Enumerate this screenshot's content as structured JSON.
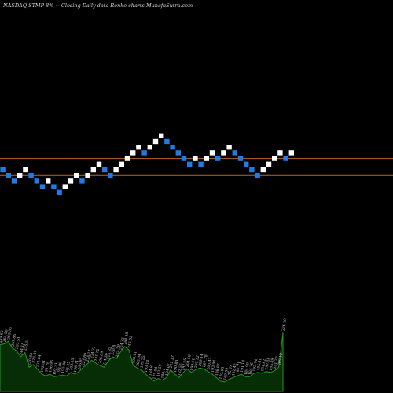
{
  "header": {
    "title": "NASDAQ STMP 8% ~ Closing Daily data Renko charts MunafaSutra.com"
  },
  "colors": {
    "background": "#000000",
    "up_brick": "#ffffff",
    "down_brick": "#1e7ce8",
    "reference_line": "#b8652a",
    "volume_fill": "#062d06",
    "volume_stroke": "#1c9a1c"
  },
  "chart_data": [
    {
      "type": "renko",
      "reference_lines": [
        2,
        -1
      ],
      "bricks": [
        {
          "level": 0,
          "dir": "down"
        },
        {
          "level": -1,
          "dir": "down"
        },
        {
          "level": -2,
          "dir": "down"
        },
        {
          "level": -1,
          "dir": "up"
        },
        {
          "level": 0,
          "dir": "up"
        },
        {
          "level": -1,
          "dir": "down"
        },
        {
          "level": -2,
          "dir": "down"
        },
        {
          "level": -3,
          "dir": "down"
        },
        {
          "level": -2,
          "dir": "up"
        },
        {
          "level": -3,
          "dir": "down"
        },
        {
          "level": -4,
          "dir": "down"
        },
        {
          "level": -3,
          "dir": "up"
        },
        {
          "level": -2,
          "dir": "up"
        },
        {
          "level": -1,
          "dir": "up"
        },
        {
          "level": -2,
          "dir": "down"
        },
        {
          "level": -1,
          "dir": "up"
        },
        {
          "level": 0,
          "dir": "up"
        },
        {
          "level": 1,
          "dir": "up"
        },
        {
          "level": 0,
          "dir": "down"
        },
        {
          "level": -1,
          "dir": "down"
        },
        {
          "level": 0,
          "dir": "up"
        },
        {
          "level": 1,
          "dir": "up"
        },
        {
          "level": 2,
          "dir": "up"
        },
        {
          "level": 3,
          "dir": "up"
        },
        {
          "level": 4,
          "dir": "up"
        },
        {
          "level": 3,
          "dir": "down"
        },
        {
          "level": 4,
          "dir": "up"
        },
        {
          "level": 5,
          "dir": "up"
        },
        {
          "level": 6,
          "dir": "up"
        },
        {
          "level": 5,
          "dir": "down"
        },
        {
          "level": 4,
          "dir": "down"
        },
        {
          "level": 3,
          "dir": "down"
        },
        {
          "level": 2,
          "dir": "down"
        },
        {
          "level": 1,
          "dir": "down"
        },
        {
          "level": 2,
          "dir": "up"
        },
        {
          "level": 1,
          "dir": "down"
        },
        {
          "level": 2,
          "dir": "up"
        },
        {
          "level": 3,
          "dir": "up"
        },
        {
          "level": 2,
          "dir": "down"
        },
        {
          "level": 3,
          "dir": "up"
        },
        {
          "level": 4,
          "dir": "up"
        },
        {
          "level": 3,
          "dir": "down"
        },
        {
          "level": 2,
          "dir": "down"
        },
        {
          "level": 1,
          "dir": "down"
        },
        {
          "level": 0,
          "dir": "down"
        },
        {
          "level": -1,
          "dir": "down"
        },
        {
          "level": 0,
          "dir": "up"
        },
        {
          "level": 1,
          "dir": "up"
        },
        {
          "level": 2,
          "dir": "up"
        },
        {
          "level": 3,
          "dir": "up"
        },
        {
          "level": 2,
          "dir": "down"
        },
        {
          "level": 3,
          "dir": "up"
        }
      ]
    },
    {
      "type": "area",
      "ylim": [
        0,
        100
      ],
      "labels": [
        "259.66",
        "264.58",
        "265.56",
        "257.86",
        "253.51",
        "244.18",
        "255.5",
        "220.83",
        "226.47",
        "221.04",
        "192.01",
        "191.78",
        "196.95",
        "192.31",
        "193.06",
        "195.88",
        "192.45",
        "202.05",
        "198.71",
        "205.95",
        "223.89",
        "228.17",
        "234.21",
        "231.72",
        "206.89",
        "214.26",
        "215.82",
        "238.8",
        "225.59",
        "264.32",
        "264.38",
        "246.52",
        "208.11",
        "203.94",
        "199.25",
        "193.14",
        "184.8",
        "175.04",
        "182.59",
        "180.1",
        "184.07",
        "212.37",
        "190.83",
        "182.55",
        "197.95",
        "204.58",
        "199.91",
        "206.32",
        "209.14",
        "207.78",
        "200.42",
        "193.94",
        "186.87",
        "170.05",
        "169.39",
        "175.67",
        "182.42",
        "187.71",
        "191.14",
        "184.99",
        "184.76",
        "193.74",
        "195.61",
        "194.82",
        "197.58",
        "195.09",
        "201.29",
        "209.12",
        "226.39"
      ],
      "values": [
        54,
        55,
        58,
        50,
        47,
        40,
        45,
        28,
        31,
        26,
        20,
        18,
        20,
        17,
        18,
        19,
        18,
        22,
        20,
        23,
        28,
        32,
        36,
        33,
        30,
        28,
        35,
        40,
        38,
        46,
        52,
        48,
        30,
        27,
        25,
        20,
        16,
        12,
        15,
        13,
        16,
        25,
        20,
        16,
        22,
        26,
        22,
        25,
        27,
        26,
        23,
        20,
        16,
        12,
        11,
        14,
        16,
        18,
        20,
        17,
        17,
        21,
        22,
        21,
        23,
        22,
        24,
        28,
        68
      ]
    }
  ]
}
